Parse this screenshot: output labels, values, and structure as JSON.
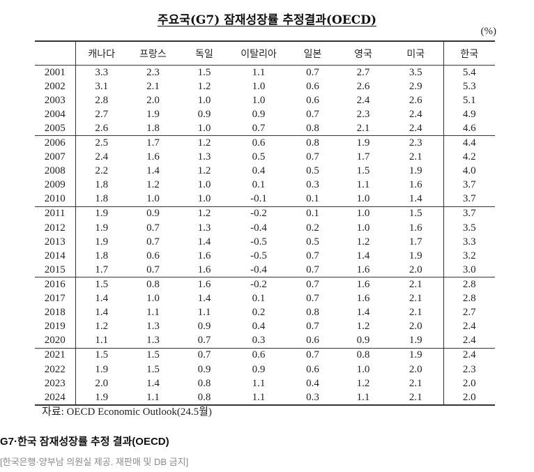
{
  "chart_data": {
    "type": "table",
    "title": "주요국(G7) 잠재성장률 추정결과(OECD)",
    "unit": "(%)",
    "source": "자료: OECD Economic Outlook(24.5월)",
    "columns": [
      "캐나다",
      "프랑스",
      "독일",
      "이탈리아",
      "일본",
      "영국",
      "미국",
      "한국"
    ],
    "rows": [
      {
        "year": 2001,
        "values": [
          3.3,
          2.3,
          1.5,
          1.1,
          0.7,
          2.7,
          3.5,
          5.4
        ]
      },
      {
        "year": 2002,
        "values": [
          3.1,
          2.1,
          1.2,
          1.0,
          0.6,
          2.6,
          2.9,
          5.3
        ]
      },
      {
        "year": 2003,
        "values": [
          2.8,
          2.0,
          1.0,
          1.0,
          0.6,
          2.4,
          2.6,
          5.1
        ]
      },
      {
        "year": 2004,
        "values": [
          2.7,
          1.9,
          0.9,
          0.9,
          0.7,
          2.3,
          2.4,
          4.9
        ]
      },
      {
        "year": 2005,
        "values": [
          2.6,
          1.8,
          1.0,
          0.7,
          0.8,
          2.1,
          2.4,
          4.6
        ]
      },
      {
        "year": 2006,
        "values": [
          2.5,
          1.7,
          1.2,
          0.6,
          0.8,
          1.9,
          2.3,
          4.4
        ]
      },
      {
        "year": 2007,
        "values": [
          2.4,
          1.6,
          1.3,
          0.5,
          0.7,
          1.7,
          2.1,
          4.2
        ]
      },
      {
        "year": 2008,
        "values": [
          2.2,
          1.4,
          1.2,
          0.4,
          0.5,
          1.5,
          1.9,
          4.0
        ]
      },
      {
        "year": 2009,
        "values": [
          1.8,
          1.2,
          1.0,
          0.1,
          0.3,
          1.1,
          1.6,
          3.7
        ]
      },
      {
        "year": 2010,
        "values": [
          1.8,
          1.0,
          1.0,
          -0.1,
          0.1,
          1.0,
          1.4,
          3.7
        ]
      },
      {
        "year": 2011,
        "values": [
          1.9,
          0.9,
          1.2,
          -0.2,
          0.1,
          1.0,
          1.5,
          3.7
        ]
      },
      {
        "year": 2012,
        "values": [
          1.9,
          0.7,
          1.3,
          -0.4,
          0.2,
          1.0,
          1.6,
          3.5
        ]
      },
      {
        "year": 2013,
        "values": [
          1.9,
          0.7,
          1.4,
          -0.5,
          0.5,
          1.2,
          1.7,
          3.3
        ]
      },
      {
        "year": 2014,
        "values": [
          1.8,
          0.6,
          1.6,
          -0.5,
          0.7,
          1.4,
          1.9,
          3.2
        ]
      },
      {
        "year": 2015,
        "values": [
          1.7,
          0.7,
          1.6,
          -0.4,
          0.7,
          1.6,
          2.0,
          3.0
        ]
      },
      {
        "year": 2016,
        "values": [
          1.5,
          0.8,
          1.6,
          -0.2,
          0.7,
          1.6,
          2.1,
          2.8
        ]
      },
      {
        "year": 2017,
        "values": [
          1.4,
          1.0,
          1.4,
          0.1,
          0.7,
          1.6,
          2.1,
          2.8
        ]
      },
      {
        "year": 2018,
        "values": [
          1.4,
          1.1,
          1.1,
          0.2,
          0.8,
          1.4,
          2.1,
          2.7
        ]
      },
      {
        "year": 2019,
        "values": [
          1.2,
          1.3,
          0.9,
          0.4,
          0.7,
          1.2,
          2.0,
          2.4
        ]
      },
      {
        "year": 2020,
        "values": [
          1.1,
          1.3,
          0.7,
          0.3,
          0.6,
          0.9,
          1.9,
          2.4
        ]
      },
      {
        "year": 2021,
        "values": [
          1.5,
          1.5,
          0.7,
          0.6,
          0.7,
          0.8,
          1.9,
          2.4
        ]
      },
      {
        "year": 2022,
        "values": [
          1.9,
          1.5,
          0.9,
          0.9,
          0.6,
          1.0,
          2.0,
          2.3
        ]
      },
      {
        "year": 2023,
        "values": [
          2.0,
          1.4,
          0.8,
          1.1,
          0.4,
          1.2,
          2.1,
          2.0
        ]
      },
      {
        "year": 2024,
        "values": [
          1.9,
          1.1,
          0.8,
          1.1,
          0.3,
          1.1,
          2.1,
          2.0
        ]
      }
    ]
  },
  "caption": "G7·한국 잠재성장률 추정 결과(OECD)",
  "credit": "[한국은행·양부남 의원실 제공. 재판매 및 DB 금지]"
}
